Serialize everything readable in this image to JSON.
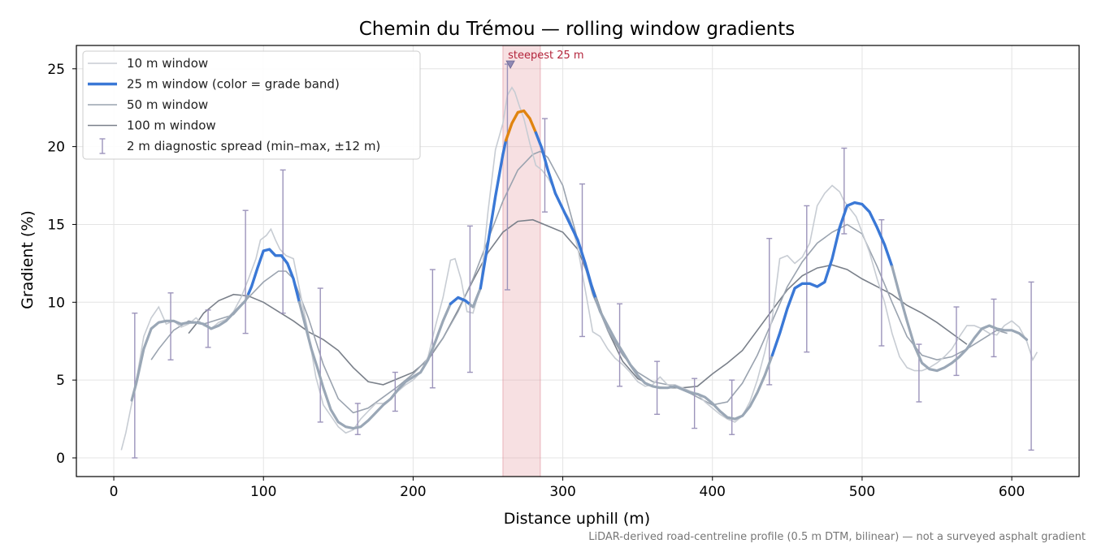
{
  "chart_data": {
    "type": "line",
    "title": "Chemin du Trémou — rolling window gradients",
    "xlabel": "Distance uphill (m)",
    "ylabel": "Gradient (%)",
    "xlim": [
      -25,
      645
    ],
    "ylim": [
      -1.2,
      26.5
    ],
    "xticks": [
      0,
      100,
      200,
      300,
      400,
      500,
      600
    ],
    "yticks": [
      0,
      5,
      10,
      15,
      20,
      25
    ],
    "grid": true,
    "legend_position": "top-left",
    "footnote": "LiDAR-derived road-centreline profile (0.5 m DTM, bilinear) — not a surveyed asphalt gradient",
    "highlight_band": {
      "x_start": 260,
      "x_end": 285,
      "color": "#e8a5ad"
    },
    "annotation": {
      "text": "steepest 25 m",
      "x": 265,
      "y": 25.3
    },
    "grade_band_colors": {
      "default": "#9aa7b6",
      "moderate": "#3a78d6",
      "steep": "#e08410"
    },
    "series": [
      {
        "name": "10 m window",
        "color": "#c7ccd3",
        "x": [
          5,
          8,
          12,
          16,
          20,
          25,
          30,
          35,
          40,
          45,
          50,
          55,
          60,
          65,
          70,
          75,
          80,
          85,
          90,
          95,
          98,
          102,
          105,
          108,
          111,
          115,
          120,
          125,
          130,
          135,
          140,
          145,
          150,
          155,
          160,
          165,
          170,
          175,
          180,
          185,
          190,
          195,
          200,
          205,
          210,
          215,
          220,
          225,
          228,
          232,
          236,
          240,
          245,
          250,
          255,
          260,
          263,
          266,
          268,
          271,
          274,
          278,
          282,
          286,
          290,
          295,
          300,
          305,
          310,
          315,
          320,
          325,
          330,
          335,
          340,
          345,
          350,
          355,
          360,
          365,
          370,
          375,
          380,
          385,
          390,
          395,
          400,
          405,
          410,
          415,
          420,
          425,
          430,
          435,
          440,
          445,
          450,
          455,
          460,
          465,
          470,
          475,
          480,
          485,
          488,
          492,
          496,
          500,
          505,
          510,
          515,
          520,
          525,
          530,
          535,
          540,
          545,
          550,
          555,
          560,
          565,
          570,
          575,
          580,
          585,
          590,
          595,
          600,
          605,
          610,
          614,
          617
        ],
        "y": [
          0.5,
          1.6,
          3.5,
          5.5,
          7.8,
          9.0,
          9.7,
          8.6,
          8.8,
          8.4,
          8.6,
          9.0,
          8.5,
          8.3,
          8.7,
          8.9,
          9.4,
          10.3,
          11.5,
          12.8,
          14.0,
          14.3,
          14.7,
          14.0,
          13.4,
          13.0,
          12.8,
          10.4,
          8.0,
          5.2,
          3.4,
          2.7,
          2.0,
          1.6,
          1.8,
          2.5,
          3.0,
          3.5,
          3.5,
          3.8,
          4.3,
          4.7,
          5.0,
          5.5,
          6.5,
          8.5,
          10.3,
          12.7,
          12.8,
          11.5,
          9.4,
          9.3,
          11.0,
          15.8,
          19.8,
          21.5,
          23.3,
          23.8,
          23.5,
          22.6,
          21.8,
          20.2,
          18.8,
          18.5,
          18.0,
          17.1,
          16.0,
          15.3,
          13.5,
          10.8,
          8.1,
          7.8,
          7.0,
          6.4,
          6.0,
          5.5,
          4.9,
          4.6,
          4.7,
          5.2,
          4.7,
          4.7,
          4.5,
          4.3,
          4.1,
          3.6,
          3.2,
          2.8,
          2.5,
          2.3,
          2.7,
          3.6,
          5.0,
          6.8,
          9.0,
          12.8,
          13.0,
          12.5,
          12.9,
          13.8,
          16.2,
          17.0,
          17.5,
          17.1,
          16.5,
          16.0,
          15.5,
          14.5,
          13.2,
          11.5,
          10.0,
          8.0,
          6.5,
          5.8,
          5.6,
          5.6,
          5.8,
          6.1,
          6.5,
          7.0,
          7.8,
          8.5,
          8.5,
          8.3,
          8.0,
          7.9,
          8.5,
          8.8,
          8.4,
          7.5,
          6.3,
          6.8
        ]
      },
      {
        "name": "25 m window (color = grade band)",
        "color": "#3a78d6",
        "x": [
          12,
          15,
          20,
          25,
          30,
          35,
          40,
          45,
          50,
          55,
          60,
          65,
          70,
          75,
          80,
          85,
          88,
          92,
          96,
          100,
          104,
          108,
          112,
          116,
          120,
          124,
          128,
          132,
          136,
          140,
          145,
          150,
          155,
          160,
          165,
          170,
          175,
          180,
          185,
          190,
          195,
          200,
          205,
          210,
          215,
          220,
          225,
          230,
          235,
          240,
          245,
          250,
          255,
          260,
          262,
          266,
          270,
          274,
          278,
          282,
          286,
          290,
          295,
          300,
          305,
          310,
          315,
          320,
          325,
          330,
          335,
          340,
          345,
          350,
          355,
          360,
          365,
          370,
          375,
          380,
          385,
          390,
          395,
          400,
          405,
          410,
          415,
          420,
          425,
          430,
          435,
          440,
          445,
          450,
          455,
          460,
          465,
          470,
          475,
          480,
          485,
          490,
          495,
          500,
          505,
          510,
          515,
          520,
          525,
          530,
          535,
          540,
          545,
          550,
          555,
          560,
          565,
          570,
          575,
          580,
          585,
          590,
          595,
          600,
          605,
          610
        ],
        "y": [
          3.7,
          4.8,
          7.0,
          8.3,
          8.7,
          8.8,
          8.8,
          8.6,
          8.7,
          8.7,
          8.6,
          8.3,
          8.5,
          8.8,
          9.3,
          9.8,
          10.1,
          11.0,
          12.2,
          13.3,
          13.4,
          13.0,
          13.0,
          12.5,
          11.5,
          10.0,
          8.5,
          7.0,
          5.8,
          4.5,
          3.1,
          2.3,
          2.0,
          1.9,
          2.0,
          2.4,
          2.9,
          3.4,
          3.8,
          4.4,
          4.9,
          5.2,
          5.5,
          6.3,
          7.5,
          8.8,
          9.9,
          10.3,
          10.1,
          9.7,
          10.9,
          13.8,
          16.8,
          19.5,
          20.4,
          21.5,
          22.2,
          22.3,
          21.8,
          20.9,
          19.9,
          18.5,
          17.0,
          16.0,
          15.0,
          14.0,
          12.5,
          10.8,
          9.4,
          8.5,
          7.6,
          6.8,
          6.0,
          5.3,
          4.8,
          4.6,
          4.5,
          4.5,
          4.6,
          4.4,
          4.2,
          4.1,
          3.9,
          3.5,
          3.0,
          2.6,
          2.5,
          2.7,
          3.3,
          4.2,
          5.3,
          6.6,
          8.0,
          9.6,
          10.9,
          11.2,
          11.2,
          11.0,
          11.3,
          12.8,
          14.8,
          16.2,
          16.4,
          16.3,
          15.8,
          14.8,
          13.7,
          12.3,
          10.5,
          8.8,
          7.2,
          6.1,
          5.7,
          5.6,
          5.8,
          6.1,
          6.5,
          7.0,
          7.7,
          8.3,
          8.5,
          8.3,
          8.2,
          8.2,
          8.0,
          7.6
        ],
        "band_segments": [
          {
            "from": 12,
            "to": 90,
            "band": "default"
          },
          {
            "from": 90,
            "to": 124,
            "band": "moderate"
          },
          {
            "from": 124,
            "to": 225,
            "band": "default"
          },
          {
            "from": 225,
            "to": 238,
            "band": "moderate"
          },
          {
            "from": 238,
            "to": 245,
            "band": "default"
          },
          {
            "from": 245,
            "to": 262,
            "band": "moderate"
          },
          {
            "from": 262,
            "to": 282,
            "band": "steep"
          },
          {
            "from": 282,
            "to": 322,
            "band": "moderate"
          },
          {
            "from": 322,
            "to": 440,
            "band": "default"
          },
          {
            "from": 440,
            "to": 520,
            "band": "moderate"
          },
          {
            "from": 520,
            "to": 610,
            "band": "default"
          }
        ]
      },
      {
        "name": "50 m window",
        "color": "#9aa3af",
        "x": [
          25,
          30,
          40,
          50,
          60,
          70,
          80,
          90,
          100,
          110,
          115,
          120,
          130,
          140,
          150,
          160,
          170,
          180,
          190,
          200,
          210,
          220,
          230,
          240,
          250,
          260,
          270,
          280,
          285,
          290,
          300,
          310,
          320,
          330,
          340,
          350,
          360,
          370,
          380,
          390,
          400,
          410,
          420,
          430,
          440,
          450,
          460,
          470,
          480,
          490,
          500,
          510,
          520,
          530,
          540,
          550,
          560,
          570,
          580,
          590,
          597
        ],
        "y": [
          6.3,
          7.0,
          8.2,
          8.8,
          8.6,
          8.9,
          9.2,
          10.3,
          11.3,
          12.0,
          12.0,
          11.5,
          9.0,
          6.0,
          3.8,
          2.9,
          3.2,
          3.9,
          4.6,
          5.4,
          6.4,
          7.7,
          9.4,
          11.5,
          14.0,
          16.5,
          18.5,
          19.5,
          19.7,
          19.3,
          17.5,
          14.0,
          10.5,
          8.2,
          6.6,
          5.5,
          4.9,
          4.7,
          4.4,
          3.9,
          3.4,
          3.6,
          4.8,
          6.6,
          8.8,
          11.0,
          12.6,
          13.8,
          14.5,
          15.0,
          14.4,
          12.3,
          10.0,
          7.8,
          6.6,
          6.3,
          6.5,
          7.0,
          7.6,
          8.2,
          8.0
        ]
      },
      {
        "name": "100 m window",
        "color": "#7a808a",
        "x": [
          50,
          55,
          60,
          70,
          80,
          90,
          100,
          110,
          120,
          130,
          140,
          150,
          160,
          170,
          180,
          190,
          200,
          210,
          220,
          230,
          240,
          250,
          260,
          270,
          280,
          290,
          300,
          310,
          320,
          330,
          340,
          350,
          360,
          370,
          380,
          390,
          400,
          410,
          420,
          430,
          440,
          450,
          460,
          470,
          480,
          490,
          500,
          510,
          520,
          530,
          540,
          550,
          560,
          570
        ],
        "y": [
          8.0,
          8.6,
          9.3,
          10.1,
          10.5,
          10.4,
          10.0,
          9.4,
          8.8,
          8.1,
          7.6,
          6.9,
          5.8,
          4.9,
          4.7,
          5.1,
          5.5,
          6.3,
          7.7,
          9.5,
          11.4,
          13.2,
          14.5,
          15.2,
          15.3,
          14.9,
          14.5,
          13.4,
          11.0,
          8.2,
          6.2,
          5.1,
          4.6,
          4.5,
          4.5,
          4.6,
          5.4,
          6.1,
          6.9,
          8.2,
          9.5,
          10.8,
          11.7,
          12.2,
          12.4,
          12.1,
          11.5,
          11.0,
          10.5,
          9.8,
          9.3,
          8.7,
          8.0,
          7.3
        ]
      }
    ],
    "error_bars": {
      "name": "2 m diagnostic spread (min–max, ±12 m)",
      "color": "#9c94bb",
      "points": [
        {
          "x": 14,
          "lo": 0.0,
          "hi": 9.3
        },
        {
          "x": 38,
          "lo": 6.3,
          "hi": 10.6
        },
        {
          "x": 63,
          "lo": 7.1,
          "hi": 9.5
        },
        {
          "x": 88,
          "lo": 8.0,
          "hi": 15.9
        },
        {
          "x": 113,
          "lo": 9.3,
          "hi": 18.5
        },
        {
          "x": 138,
          "lo": 2.3,
          "hi": 10.9
        },
        {
          "x": 163,
          "lo": 1.5,
          "hi": 3.5
        },
        {
          "x": 188,
          "lo": 3.0,
          "hi": 5.5
        },
        {
          "x": 213,
          "lo": 4.5,
          "hi": 12.1
        },
        {
          "x": 238,
          "lo": 5.5,
          "hi": 14.9
        },
        {
          "x": 263,
          "lo": 10.8,
          "hi": 25.3
        },
        {
          "x": 288,
          "lo": 15.8,
          "hi": 21.8
        },
        {
          "x": 313,
          "lo": 7.8,
          "hi": 17.6
        },
        {
          "x": 338,
          "lo": 4.6,
          "hi": 9.9
        },
        {
          "x": 363,
          "lo": 2.8,
          "hi": 6.2
        },
        {
          "x": 388,
          "lo": 1.9,
          "hi": 5.1
        },
        {
          "x": 413,
          "lo": 1.5,
          "hi": 5.0
        },
        {
          "x": 438,
          "lo": 4.7,
          "hi": 14.1
        },
        {
          "x": 463,
          "lo": 6.8,
          "hi": 16.2
        },
        {
          "x": 488,
          "lo": 14.4,
          "hi": 19.9
        },
        {
          "x": 513,
          "lo": 7.2,
          "hi": 15.3
        },
        {
          "x": 538,
          "lo": 3.6,
          "hi": 7.3
        },
        {
          "x": 563,
          "lo": 5.3,
          "hi": 9.7
        },
        {
          "x": 588,
          "lo": 6.5,
          "hi": 10.2
        },
        {
          "x": 613,
          "lo": 0.5,
          "hi": 11.3
        }
      ]
    }
  }
}
